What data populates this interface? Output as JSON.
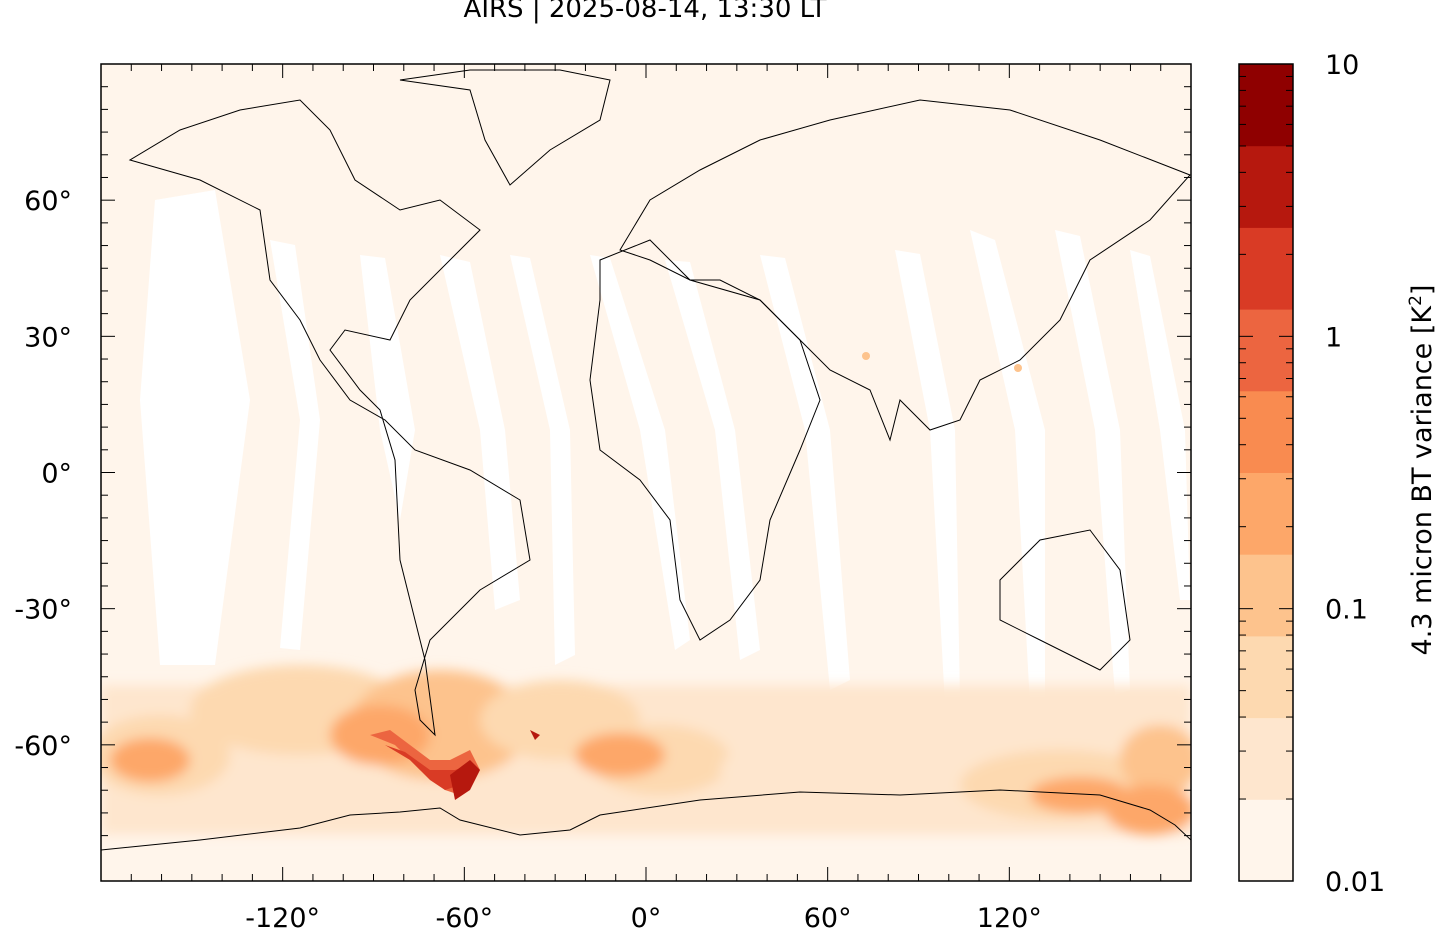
{
  "title": "AIRS | 2025-08-14, 13:30 LT",
  "map": {
    "projection": "equirectangular",
    "lon_range": [
      -180,
      180
    ],
    "lat_range": [
      -90,
      90
    ],
    "x_ticks": [
      -120,
      -60,
      0,
      60,
      120
    ],
    "y_ticks": [
      60,
      30,
      0,
      -30,
      -60
    ],
    "x_tick_labels": [
      "-120°",
      "-60°",
      "0°",
      "60°",
      "120°"
    ],
    "y_tick_labels": [
      "60°",
      "30°",
      "0°",
      "-30°",
      "-60°"
    ],
    "background_color": "#fff5eb",
    "coastline_color": "#000000"
  },
  "colorbar": {
    "label": "4.3 micron BT variance [K",
    "label_superscript": "2",
    "label_suffix": "]",
    "scale": "log",
    "range": [
      0.01,
      10
    ],
    "tick_labels": [
      "10",
      "1",
      "0.1",
      "0.01"
    ],
    "tick_values": [
      10,
      1,
      0.1,
      0.01
    ],
    "colors": [
      "#fff5eb",
      "#fee6ce",
      "#fdd9b0",
      "#fdc38d",
      "#fda769",
      "#f98b50",
      "#ec6540",
      "#d93b25",
      "#b6180e",
      "#8f0000"
    ]
  }
}
